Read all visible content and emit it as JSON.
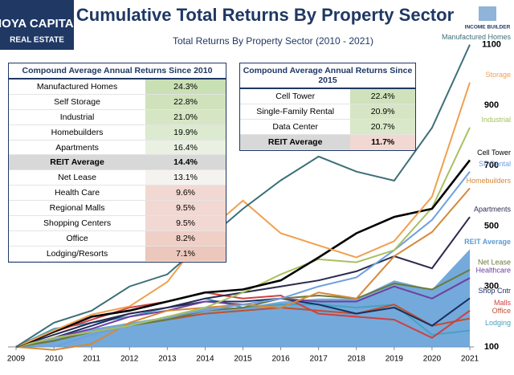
{
  "header": {
    "logo_top": "HOYA CAPITAL",
    "logo_bottom": "REAL ESTATE",
    "badge": "INCOME BUILDER"
  },
  "chart_data": {
    "type": "line",
    "title": "Cumulative Total Returns By Property Sector",
    "subtitle": "Total Returns By Property Sector (2010 - 2021)",
    "x": [
      2009,
      2010,
      2011,
      2012,
      2013,
      2014,
      2015,
      2016,
      2017,
      2018,
      2019,
      2020,
      2021
    ],
    "xlim": [
      2009,
      2021
    ],
    "ylim": [
      100,
      1200
    ],
    "yticks": [
      100,
      300,
      500,
      700,
      900,
      1100
    ],
    "grid": false,
    "series": [
      {
        "name": "REIT Average",
        "color": "#5b9bd5",
        "style": "area",
        "values": [
          100,
          130,
          160,
          180,
          200,
          230,
          230,
          250,
          260,
          260,
          320,
          290,
          423
        ]
      },
      {
        "name": "Lodging",
        "color": "#4aa0c0",
        "values": [
          100,
          160,
          180,
          200,
          230,
          260,
          230,
          240,
          240,
          230,
          240,
          140,
          154
        ]
      },
      {
        "name": "Office",
        "color": "#c05030",
        "values": [
          100,
          120,
          150,
          170,
          190,
          210,
          220,
          230,
          220,
          210,
          240,
          170,
          194
        ]
      },
      {
        "name": "Malls",
        "color": "#d04040",
        "values": [
          100,
          150,
          190,
          230,
          250,
          280,
          260,
          270,
          210,
          200,
          190,
          130,
          220
        ]
      },
      {
        "name": "Shop Cntr",
        "color": "#1a3060",
        "values": [
          100,
          130,
          170,
          210,
          230,
          250,
          250,
          260,
          240,
          210,
          230,
          170,
          261
        ]
      },
      {
        "name": "Healthcare",
        "color": "#7040a0",
        "values": [
          100,
          130,
          160,
          200,
          220,
          250,
          240,
          260,
          250,
          250,
          300,
          260,
          328
        ]
      },
      {
        "name": "Net Lease",
        "color": "#6b7a3a",
        "values": [
          100,
          120,
          150,
          170,
          190,
          220,
          230,
          260,
          270,
          260,
          310,
          290,
          355
        ]
      },
      {
        "name": "Apartments",
        "color": "#2a2a50",
        "values": [
          100,
          140,
          180,
          210,
          230,
          260,
          280,
          300,
          320,
          350,
          400,
          360,
          530
        ]
      },
      {
        "name": "Homebuilders",
        "color": "#d4893a",
        "values": [
          100,
          90,
          110,
          180,
          220,
          230,
          240,
          230,
          280,
          260,
          400,
          480,
          625
        ]
      },
      {
        "name": "SF Rental",
        "color": "#6fa0e0",
        "values": [
          null,
          100,
          140,
          170,
          200,
          220,
          240,
          260,
          300,
          330,
          420,
          520,
          680
        ]
      },
      {
        "name": "Industrial",
        "color": "#a8c060",
        "values": [
          100,
          130,
          150,
          170,
          200,
          230,
          280,
          340,
          390,
          380,
          420,
          560,
          826
        ]
      },
      {
        "name": "Cell Tower",
        "color": "#000000",
        "values": [
          100,
          150,
          200,
          220,
          250,
          280,
          290,
          320,
          396,
          476,
          530,
          557,
          718
        ]
      },
      {
        "name": "Storage",
        "color": "#f0a050",
        "values": [
          100,
          154,
          207,
          234,
          315,
          476,
          584,
          476,
          436,
          396,
          450,
          597,
          975
        ]
      },
      {
        "name": "Manufactured Homes",
        "color": "#3d6f7a",
        "values": [
          100,
          180,
          220,
          300,
          340,
          450,
          557,
          651,
          730,
          680,
          650,
          825,
          1100
        ]
      }
    ]
  },
  "tables": [
    {
      "title": "Compound Average Annual Returns Since 2010",
      "rows": [
        [
          "Manufactured Homes",
          "24.3%"
        ],
        [
          "Self Storage",
          "22.8%"
        ],
        [
          "Industrial",
          "21.0%"
        ],
        [
          "Homebuilders",
          "19.9%"
        ],
        [
          "Apartments",
          "16.4%"
        ],
        [
          "REIT Average",
          "14.4%"
        ],
        [
          "Net Lease",
          "13.1%"
        ],
        [
          "Health Care",
          "9.6%"
        ],
        [
          "Regional Malls",
          "9.5%"
        ],
        [
          "Shopping Centers",
          "9.5%"
        ],
        [
          "Office",
          "8.2%"
        ],
        [
          "Lodging/Resorts",
          "7.1%"
        ]
      ],
      "colors": [
        "#c9dfb4",
        "#cfe2bb",
        "#d6e6c4",
        "#dcead0",
        "#eaf1e2",
        "#d8d8d8",
        "#f5f3ef",
        "#f2d8d2",
        "#f2d8d2",
        "#f2d8d2",
        "#efcfc6",
        "#ecc7bc"
      ],
      "highlight": 5
    },
    {
      "title": "Compound Average Annual Returns Since 2015",
      "rows": [
        [
          "Cell Tower",
          "22.4%"
        ],
        [
          "Single-Family Rental",
          "20.9%"
        ],
        [
          "Data Center",
          "20.7%"
        ],
        [
          "REIT Average",
          "11.7%"
        ]
      ],
      "colors": [
        "#cfe2bb",
        "#d6e6c4",
        "#d8e8c8",
        "#f2d8d2"
      ],
      "highlight": 3
    }
  ]
}
